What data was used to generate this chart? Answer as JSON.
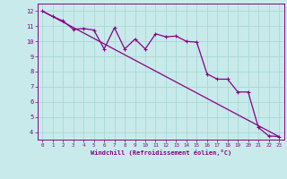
{
  "xlabel": "Windchill (Refroidissement éolien,°C)",
  "bg_color": "#c8eaea",
  "grid_color": "#a8d8d8",
  "line_color": "#880088",
  "xlim": [
    -0.5,
    23.5
  ],
  "ylim": [
    3.5,
    12.5
  ],
  "xticks": [
    0,
    1,
    2,
    3,
    4,
    5,
    6,
    7,
    8,
    9,
    10,
    11,
    12,
    13,
    14,
    15,
    16,
    17,
    18,
    19,
    20,
    21,
    22,
    23
  ],
  "yticks": [
    4,
    5,
    6,
    7,
    8,
    9,
    10,
    11,
    12
  ],
  "line1_x": [
    0,
    1,
    2,
    3,
    4,
    5,
    6,
    7,
    8,
    9,
    10,
    11,
    12,
    13,
    14,
    15,
    16,
    17,
    18,
    19,
    20,
    21,
    22,
    23
  ],
  "line1_y": [
    12.0,
    11.65,
    11.35,
    10.8,
    10.85,
    10.75,
    9.5,
    10.9,
    9.5,
    10.15,
    9.5,
    10.5,
    10.3,
    10.35,
    10.0,
    9.95,
    7.85,
    7.5,
    7.5,
    6.65,
    6.65,
    4.3,
    3.75,
    3.7
  ],
  "line2_x": [
    0,
    23
  ],
  "line2_y": [
    12.0,
    3.7
  ]
}
